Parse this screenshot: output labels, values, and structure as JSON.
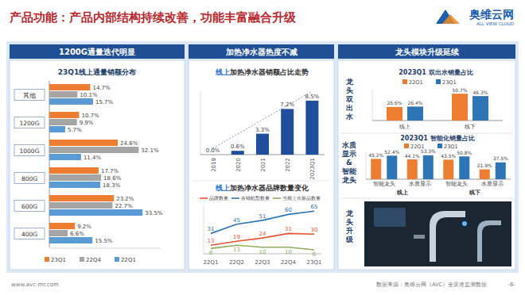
{
  "page": {
    "title": "产品功能：产品内部结构持续改善，功能丰富融合升级",
    "logo": "奥维云网",
    "logo_en": "ALL VIEW CLOUD",
    "website": "www.avc-mr.com",
    "source": "数据来源：奥维云网（AVC）全渠道监测数据",
    "page_number": "-6-"
  },
  "panels": [
    {
      "header": "1200G通量迭代明显"
    },
    {
      "header": "加热净水器热度不减"
    },
    {
      "header": "龙头模块升级延续",
      "side_labels": [
        "龙头双出水",
        "水质显示&智能龙头",
        "龙头升级"
      ]
    }
  ],
  "chart_data": [
    {
      "type": "bar",
      "orientation": "horizontal",
      "title": "23Q1线上通量销额分布",
      "categories": [
        "其他",
        "1200G",
        "1000G",
        "800G",
        "600G",
        "400G"
      ],
      "series": [
        {
          "name": "23Q1",
          "color": "#ed7d31",
          "values": [
            14.7,
            10.7,
            24.6,
            17.7,
            23.2,
            9.2
          ],
          "value_labels": [
            "14.7%",
            "10.7%",
            "24.6%",
            "17.7%",
            "23.2%",
            "9.2%"
          ]
        },
        {
          "name": "22Q4",
          "color": "#a5a5a5",
          "values": [
            10.1,
            9.9,
            32.1,
            18.6,
            22.7,
            6.6
          ],
          "value_labels": [
            "10.1%",
            "9.9%",
            "32.1%",
            "18.6%",
            "22.7%",
            "6.6%"
          ]
        },
        {
          "name": "22Q1",
          "color": "#5b9bd5",
          "values": [
            15.7,
            5.7,
            11.4,
            18.3,
            33.5,
            15.5
          ],
          "value_labels": [
            "15.7%",
            "5.7%",
            "11.4%",
            "18.3%",
            "33.5%",
            "15.5%"
          ]
        }
      ],
      "xlim": [
        0,
        40
      ],
      "tick_labels": "y",
      "data_labels": true,
      "legend": "bottom"
    },
    {
      "type": "bar",
      "title": "线上加热净水器销额占比走势",
      "categories": [
        "2019",
        "2020",
        "2021",
        "2022",
        "2023Q1"
      ],
      "values": [
        0.0,
        0.6,
        3.3,
        7.2,
        8.5
      ],
      "value_labels": [
        "0.0%",
        "0.6%",
        "3.3%",
        "7.2%",
        "8.5%"
      ],
      "color": "#1f4e9c",
      "ylim": [
        0,
        10
      ],
      "tick_labels": "x",
      "data_labels": true
    },
    {
      "type": "line",
      "title": "线上加热净水器品牌数量变化",
      "categories": [
        "22Q1",
        "22Q2",
        "22Q3",
        "22Q4",
        "23Q1"
      ],
      "series": [
        {
          "name": "品牌数量",
          "color": "#e8542f",
          "values": [
            13,
            19,
            24,
            31,
            30
          ]
        },
        {
          "name": "在销机型数量",
          "color": "#2e75b6",
          "values": [
            31,
            45,
            51,
            60,
            65
          ]
        },
        {
          "name": "当期上市新品数量",
          "color": "#8fae5a",
          "values": [
            8,
            13,
            10,
            10,
            6
          ]
        }
      ],
      "ylim": [
        0,
        75
      ],
      "tick_labels": "x",
      "data_labels": true,
      "legend": "top"
    },
    {
      "type": "bar",
      "title": "2023Q1 双出水销量占比",
      "categories": [
        "线上",
        "线下"
      ],
      "series": [
        {
          "name": "22Q1",
          "color": "#ed7d31",
          "values": [
            25.6,
            50.7
          ],
          "value_labels": [
            "25.6%",
            "50.7%"
          ]
        },
        {
          "name": "23Q1",
          "color": "#2e75b6",
          "values": [
            26.4,
            46.3
          ],
          "value_labels": [
            "26.4%",
            "46.3%"
          ]
        }
      ],
      "ylim": [
        0,
        60
      ],
      "tick_labels": "x",
      "data_labels": true,
      "legend": "top"
    },
    {
      "type": "bar",
      "title": "2023Q1 智能化销量占比",
      "categories": [
        "智能龙头",
        "水质显示",
        "智能龙头",
        "水质显示"
      ],
      "group_labels": [
        "线上",
        "线下"
      ],
      "series": [
        {
          "name": "22Q1",
          "color": "#ed7d31",
          "values": [
            45.2,
            44.1,
            43.5,
            21.9
          ],
          "value_labels": [
            "45.2%",
            "44.1%",
            "43.5%",
            "21.9%"
          ]
        },
        {
          "name": "23Q1",
          "color": "#2e75b6",
          "values": [
            52.4,
            53.3,
            50.8,
            37.5
          ],
          "value_labels": [
            "52.4%",
            "53.3%",
            "50.8%",
            "37.5%"
          ]
        }
      ],
      "ylim": [
        0,
        60
      ],
      "tick_labels": "x",
      "data_labels": true,
      "legend": "top"
    }
  ]
}
